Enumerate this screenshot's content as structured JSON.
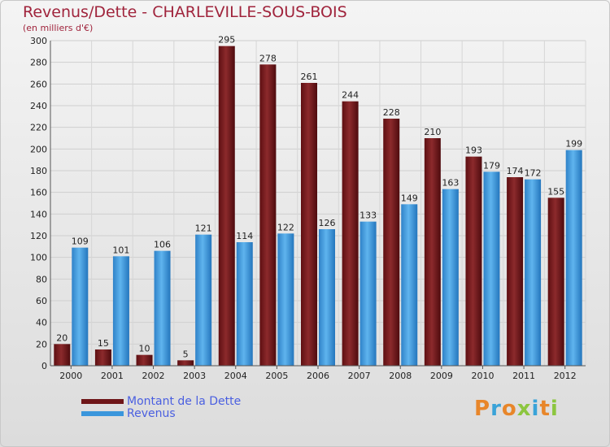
{
  "header": {
    "title": "Revenus/Dette - CHARLEVILLE-SOUS-BOIS",
    "subtitle": "(en milliers d'€)"
  },
  "legend": {
    "debt_label": "Montant de la Dette",
    "revenue_label": "Revenus"
  },
  "brand": {
    "logo_text": "Proxiti"
  },
  "colors": {
    "debt": "#7a1a1c",
    "revenue": "#3a96dc",
    "title": "#a0243c",
    "legend_text": "#4a5fe0"
  },
  "chart_data": {
    "type": "bar",
    "title": "Revenus/Dette - CHARLEVILLE-SOUS-BOIS",
    "subtitle": "(en milliers d'€)",
    "categories": [
      "2000",
      "2001",
      "2002",
      "2003",
      "2004",
      "2005",
      "2006",
      "2007",
      "2008",
      "2009",
      "2010",
      "2011",
      "2012"
    ],
    "series": [
      {
        "name": "Montant de la Dette",
        "values": [
          20,
          15,
          10,
          5,
          295,
          278,
          261,
          244,
          228,
          210,
          193,
          174,
          155
        ]
      },
      {
        "name": "Revenus",
        "values": [
          109,
          101,
          106,
          121,
          114,
          122,
          126,
          133,
          149,
          163,
          179,
          172,
          199
        ]
      }
    ],
    "ylim": [
      0,
      300
    ],
    "yticks": [
      0,
      20,
      40,
      60,
      80,
      100,
      120,
      140,
      160,
      180,
      200,
      220,
      240,
      260,
      280,
      300
    ],
    "grid": true,
    "legend_position": "bottom-left"
  }
}
